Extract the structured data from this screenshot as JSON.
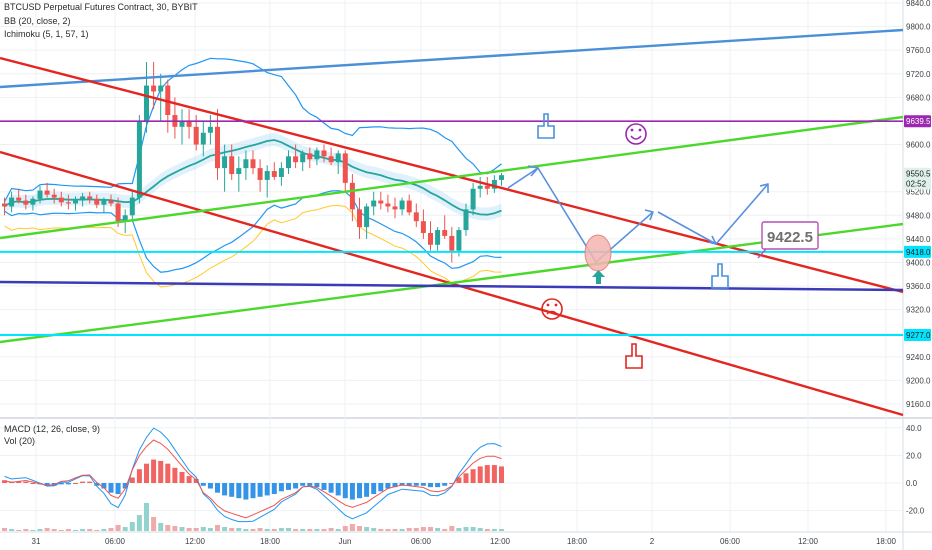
{
  "chart_data": {
    "type": "candlestick",
    "title": "BTCUSD Perpetual Futures Contract, 30, BYBIT",
    "indicators": [
      "BB (20, close, 2)",
      "Ichimoku (5, 1, 57, 1)"
    ],
    "sub_panel": {
      "legend": [
        "MACD (12, 26, close, 9)",
        "Vol (20)"
      ],
      "y_ticks": [
        "40.0",
        "20.0",
        "0.0",
        "-20.0"
      ],
      "ylim": [
        -30,
        45
      ]
    },
    "y_ticks": [
      "9840.0",
      "9800.0",
      "9760.0",
      "9720.0",
      "9680.0",
      "9600.0",
      "9520.0",
      "9480.0",
      "9440.0",
      "9400.0",
      "9360.0",
      "9320.0",
      "9280.0",
      "9240.0",
      "9200.0",
      "9160.0"
    ],
    "ylim": [
      9150,
      9850
    ],
    "x_ticks": [
      "31",
      "06:00",
      "12:00",
      "18:00",
      "Jun",
      "06:00",
      "12:00",
      "18:00",
      "2",
      "06:00",
      "12:00",
      "18:00"
    ],
    "price_tags": [
      {
        "label": "9639.5",
        "value": 9639.5,
        "color": "#9c27b0"
      },
      {
        "label": "9550.5",
        "value": 9550.5,
        "color": "#e0f0ea"
      },
      {
        "label": "02:52",
        "value": 9534,
        "color": "#e0f0ea"
      },
      {
        "label": "9418.0",
        "value": 9418,
        "color": "#00e5ff"
      },
      {
        "label": "9277.0",
        "value": 9277,
        "color": "#00e5ff"
      }
    ],
    "annotations": {
      "target_label": "9422.5"
    },
    "candles": [
      [
        9500,
        9510,
        9480,
        9495
      ],
      [
        9495,
        9520,
        9485,
        9510
      ],
      [
        9510,
        9525,
        9500,
        9505
      ],
      [
        9505,
        9515,
        9490,
        9498
      ],
      [
        9498,
        9512,
        9488,
        9508
      ],
      [
        9508,
        9530,
        9500,
        9522
      ],
      [
        9522,
        9535,
        9510,
        9515
      ],
      [
        9515,
        9525,
        9500,
        9510
      ],
      [
        9510,
        9520,
        9495,
        9502
      ],
      [
        9502,
        9515,
        9490,
        9500
      ],
      [
        9500,
        9512,
        9488,
        9505
      ],
      [
        9505,
        9518,
        9495,
        9512
      ],
      [
        9512,
        9520,
        9500,
        9508
      ],
      [
        9508,
        9515,
        9492,
        9498
      ],
      [
        9498,
        9510,
        9485,
        9505
      ],
      [
        9505,
        9515,
        9495,
        9500
      ],
      [
        9500,
        9510,
        9460,
        9470
      ],
      [
        9470,
        9490,
        9450,
        9480
      ],
      [
        9480,
        9520,
        9470,
        9510
      ],
      [
        9510,
        9650,
        9500,
        9640
      ],
      [
        9640,
        9740,
        9620,
        9700
      ],
      [
        9700,
        9740,
        9660,
        9690
      ],
      [
        9690,
        9720,
        9640,
        9700
      ],
      [
        9700,
        9710,
        9620,
        9650
      ],
      [
        9650,
        9680,
        9610,
        9630
      ],
      [
        9630,
        9660,
        9600,
        9640
      ],
      [
        9640,
        9660,
        9610,
        9630
      ],
      [
        9630,
        9650,
        9590,
        9600
      ],
      [
        9600,
        9640,
        9580,
        9620
      ],
      [
        9620,
        9650,
        9600,
        9630
      ],
      [
        9630,
        9660,
        9540,
        9560
      ],
      [
        9560,
        9600,
        9520,
        9580
      ],
      [
        9580,
        9600,
        9540,
        9550
      ],
      [
        9550,
        9580,
        9520,
        9560
      ],
      [
        9560,
        9590,
        9540,
        9575
      ],
      [
        9575,
        9590,
        9550,
        9560
      ],
      [
        9560,
        9575,
        9520,
        9540
      ],
      [
        9540,
        9565,
        9510,
        9555
      ],
      [
        9555,
        9570,
        9540,
        9545
      ],
      [
        9545,
        9570,
        9530,
        9560
      ],
      [
        9560,
        9590,
        9550,
        9580
      ],
      [
        9580,
        9600,
        9560,
        9570
      ],
      [
        9570,
        9590,
        9555,
        9585
      ],
      [
        9585,
        9595,
        9560,
        9575
      ],
      [
        9575,
        9595,
        9565,
        9590
      ],
      [
        9590,
        9600,
        9570,
        9580
      ],
      [
        9580,
        9595,
        9565,
        9570
      ],
      [
        9570,
        9590,
        9550,
        9585
      ],
      [
        9585,
        9590,
        9520,
        9535
      ],
      [
        9535,
        9550,
        9470,
        9490
      ],
      [
        9490,
        9510,
        9440,
        9460
      ],
      [
        9460,
        9500,
        9440,
        9495
      ],
      [
        9495,
        9520,
        9480,
        9505
      ],
      [
        9505,
        9520,
        9490,
        9500
      ],
      [
        9500,
        9515,
        9485,
        9495
      ],
      [
        9495,
        9510,
        9475,
        9490
      ],
      [
        9490,
        9510,
        9480,
        9505
      ],
      [
        9505,
        9515,
        9480,
        9485
      ],
      [
        9485,
        9500,
        9460,
        9470
      ],
      [
        9470,
        9490,
        9440,
        9450
      ],
      [
        9450,
        9470,
        9420,
        9430
      ],
      [
        9430,
        9460,
        9420,
        9455
      ],
      [
        9455,
        9480,
        9440,
        9445
      ],
      [
        9445,
        9460,
        9400,
        9420
      ],
      [
        9420,
        9460,
        9410,
        9455
      ],
      [
        9455,
        9500,
        9445,
        9490
      ],
      [
        9490,
        9535,
        9480,
        9525
      ],
      [
        9525,
        9545,
        9510,
        9530
      ],
      [
        9530,
        9545,
        9515,
        9525
      ],
      [
        9525,
        9548,
        9518,
        9540
      ],
      [
        9540,
        9552,
        9530,
        9548
      ]
    ]
  }
}
